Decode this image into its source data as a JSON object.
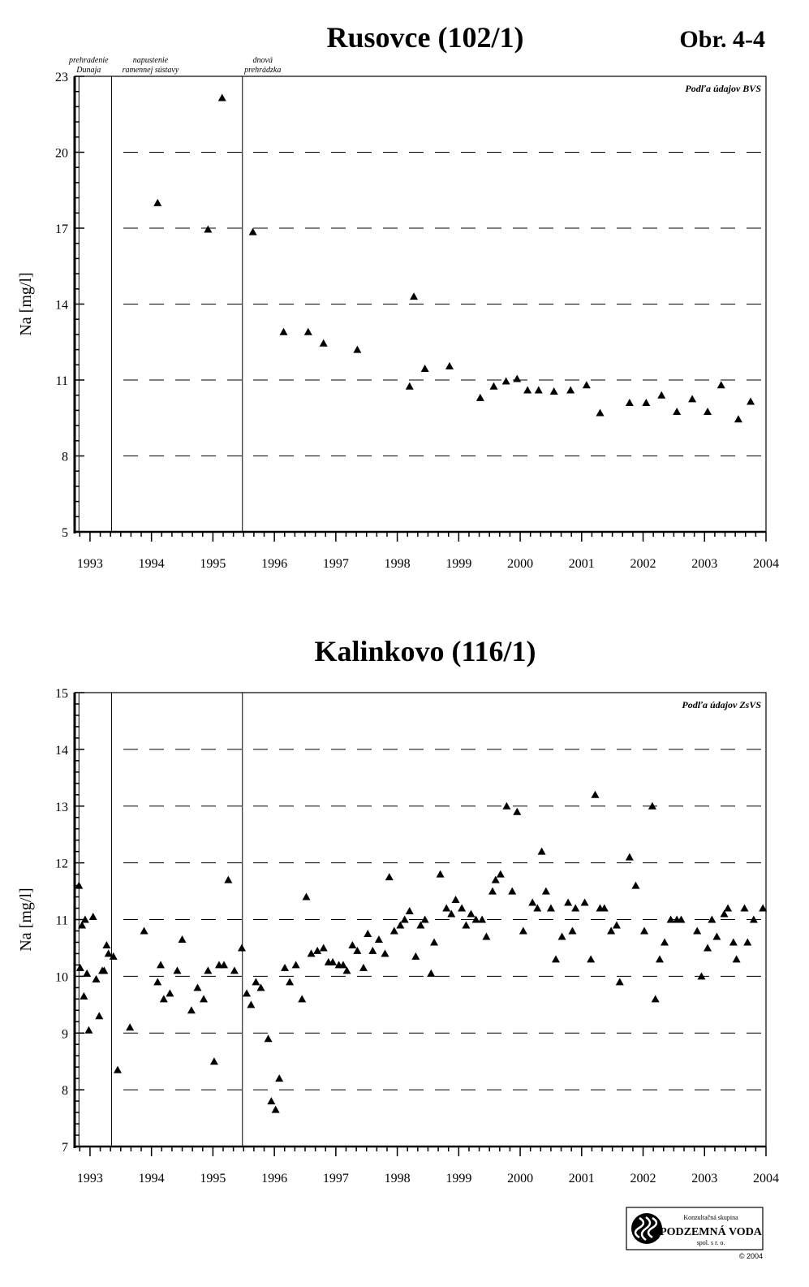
{
  "figure_label": "Obr. 4-4",
  "events": [
    {
      "line1": "prehradenie",
      "line2": "Dunaja",
      "x": 1992.82
    },
    {
      "line1": "napustenie",
      "line2": "ramennej sústavy",
      "x": 1993.35
    },
    {
      "line1": "dnová",
      "line2": "prehrádzka",
      "x": 1995.48
    }
  ],
  "logo": {
    "line1": "Konzultačná skupina",
    "line2": "PODZEMNÁ VODA",
    "line3": "spol. s r. o.",
    "copyright": "© 2004"
  },
  "chart_data": [
    {
      "type": "scatter",
      "title": "Rusovce (102/1)",
      "source_note": "Podľa údajov BVS",
      "ylabel": "Na [mg/l]",
      "xlabel": "",
      "xlim": [
        1992.75,
        2004.0
      ],
      "ylim": [
        5,
        23
      ],
      "x_ticks": [
        1993,
        1994,
        1995,
        1996,
        1997,
        1998,
        1999,
        2000,
        2001,
        2002,
        2003,
        2004
      ],
      "y_ticks": [
        5,
        8,
        11,
        14,
        17,
        20,
        23
      ],
      "grid": "horizontal dashed",
      "marker": "triangle",
      "series": [
        {
          "points": [
            [
              1994.1,
              18.0
            ],
            [
              1994.92,
              16.95
            ],
            [
              1995.15,
              22.15
            ],
            [
              1995.65,
              16.85
            ],
            [
              1996.15,
              12.9
            ],
            [
              1996.55,
              12.9
            ],
            [
              1996.8,
              12.45
            ],
            [
              1997.35,
              12.2
            ],
            [
              1998.2,
              10.75
            ],
            [
              1998.27,
              14.3
            ],
            [
              1998.45,
              11.45
            ],
            [
              1998.85,
              11.55
            ],
            [
              1999.35,
              10.3
            ],
            [
              1999.57,
              10.75
            ],
            [
              1999.77,
              10.95
            ],
            [
              1999.95,
              11.05
            ],
            [
              2000.12,
              10.6
            ],
            [
              2000.3,
              10.6
            ],
            [
              2000.55,
              10.55
            ],
            [
              2000.82,
              10.6
            ],
            [
              2001.08,
              10.8
            ],
            [
              2001.3,
              9.7
            ],
            [
              2001.78,
              10.1
            ],
            [
              2002.05,
              10.1
            ],
            [
              2002.3,
              10.4
            ],
            [
              2002.55,
              9.75
            ],
            [
              2002.8,
              10.25
            ],
            [
              2003.05,
              9.75
            ],
            [
              2003.27,
              10.8
            ],
            [
              2003.55,
              9.45
            ],
            [
              2003.75,
              10.15
            ]
          ]
        }
      ]
    },
    {
      "type": "scatter",
      "title": "Kalinkovo (116/1)",
      "source_note": "Podľa údajov ZsVS",
      "ylabel": "Na [mg/l]",
      "xlabel": "",
      "xlim": [
        1992.75,
        2004.0
      ],
      "ylim": [
        7,
        15
      ],
      "x_ticks": [
        1993,
        1994,
        1995,
        1996,
        1997,
        1998,
        1999,
        2000,
        2001,
        2002,
        2003,
        2004
      ],
      "y_ticks": [
        7,
        8,
        9,
        10,
        11,
        12,
        13,
        14,
        15
      ],
      "grid": "horizontal dashed",
      "marker": "triangle",
      "series": [
        {
          "points": [
            [
              1992.82,
              11.6
            ],
            [
              1992.84,
              10.15
            ],
            [
              1992.87,
              10.9
            ],
            [
              1992.9,
              9.65
            ],
            [
              1992.92,
              11.0
            ],
            [
              1992.95,
              10.05
            ],
            [
              1992.98,
              9.05
            ],
            [
              1993.05,
              11.05
            ],
            [
              1993.1,
              9.95
            ],
            [
              1993.15,
              9.3
            ],
            [
              1993.2,
              10.1
            ],
            [
              1993.23,
              10.1
            ],
            [
              1993.27,
              10.55
            ],
            [
              1993.3,
              10.4
            ],
            [
              1993.38,
              10.35
            ],
            [
              1993.45,
              8.35
            ],
            [
              1993.65,
              9.1
            ],
            [
              1993.88,
              10.8
            ],
            [
              1994.1,
              9.9
            ],
            [
              1994.15,
              10.2
            ],
            [
              1994.2,
              9.6
            ],
            [
              1994.3,
              9.7
            ],
            [
              1994.42,
              10.1
            ],
            [
              1994.5,
              10.65
            ],
            [
              1994.65,
              9.4
            ],
            [
              1994.75,
              9.8
            ],
            [
              1994.85,
              9.6
            ],
            [
              1994.92,
              10.1
            ],
            [
              1995.02,
              8.5
            ],
            [
              1995.1,
              10.2
            ],
            [
              1995.18,
              10.2
            ],
            [
              1995.25,
              11.7
            ],
            [
              1995.35,
              10.1
            ],
            [
              1995.47,
              10.5
            ],
            [
              1995.55,
              9.7
            ],
            [
              1995.62,
              9.5
            ],
            [
              1995.7,
              9.9
            ],
            [
              1995.78,
              9.8
            ],
            [
              1995.9,
              8.9
            ],
            [
              1995.95,
              7.8
            ],
            [
              1996.02,
              7.65
            ],
            [
              1996.08,
              8.2
            ],
            [
              1996.17,
              10.15
            ],
            [
              1996.25,
              9.9
            ],
            [
              1996.35,
              10.2
            ],
            [
              1996.45,
              9.6
            ],
            [
              1996.52,
              11.4
            ],
            [
              1996.6,
              10.4
            ],
            [
              1996.7,
              10.45
            ],
            [
              1996.8,
              10.5
            ],
            [
              1996.88,
              10.25
            ],
            [
              1996.95,
              10.25
            ],
            [
              1997.05,
              10.2
            ],
            [
              1997.12,
              10.2
            ],
            [
              1997.18,
              10.1
            ],
            [
              1997.27,
              10.55
            ],
            [
              1997.35,
              10.45
            ],
            [
              1997.45,
              10.15
            ],
            [
              1997.52,
              10.75
            ],
            [
              1997.6,
              10.45
            ],
            [
              1997.7,
              10.65
            ],
            [
              1997.8,
              10.4
            ],
            [
              1997.87,
              11.75
            ],
            [
              1997.95,
              10.8
            ],
            [
              1998.05,
              10.9
            ],
            [
              1998.12,
              11.0
            ],
            [
              1998.2,
              11.15
            ],
            [
              1998.3,
              10.35
            ],
            [
              1998.38,
              10.9
            ],
            [
              1998.45,
              11.0
            ],
            [
              1998.55,
              10.05
            ],
            [
              1998.6,
              10.6
            ],
            [
              1998.7,
              11.8
            ],
            [
              1998.8,
              11.2
            ],
            [
              1998.88,
              11.1
            ],
            [
              1998.95,
              11.35
            ],
            [
              1999.05,
              11.2
            ],
            [
              1999.12,
              10.9
            ],
            [
              1999.2,
              11.1
            ],
            [
              1999.28,
              11.0
            ],
            [
              1999.38,
              11.0
            ],
            [
              1999.45,
              10.7
            ],
            [
              1999.55,
              11.5
            ],
            [
              1999.6,
              11.7
            ],
            [
              1999.68,
              11.8
            ],
            [
              1999.78,
              13.0
            ],
            [
              1999.87,
              11.5
            ],
            [
              1999.95,
              12.9
            ],
            [
              2000.05,
              10.8
            ],
            [
              2000.2,
              11.3
            ],
            [
              2000.28,
              11.2
            ],
            [
              2000.35,
              12.2
            ],
            [
              2000.42,
              11.5
            ],
            [
              2000.5,
              11.2
            ],
            [
              2000.58,
              10.3
            ],
            [
              2000.68,
              10.7
            ],
            [
              2000.78,
              11.3
            ],
            [
              2000.85,
              10.8
            ],
            [
              2000.9,
              11.2
            ],
            [
              2001.05,
              11.3
            ],
            [
              2001.15,
              10.3
            ],
            [
              2001.22,
              13.2
            ],
            [
              2001.3,
              11.2
            ],
            [
              2001.37,
              11.2
            ],
            [
              2001.48,
              10.8
            ],
            [
              2001.57,
              10.9
            ],
            [
              2001.62,
              9.9
            ],
            [
              2001.78,
              12.1
            ],
            [
              2001.88,
              11.6
            ],
            [
              2002.02,
              10.8
            ],
            [
              2002.15,
              13.0
            ],
            [
              2002.2,
              9.6
            ],
            [
              2002.27,
              10.3
            ],
            [
              2002.35,
              10.6
            ],
            [
              2002.45,
              11.0
            ],
            [
              2002.55,
              11.0
            ],
            [
              2002.62,
              11.0
            ],
            [
              2002.88,
              10.8
            ],
            [
              2002.95,
              10.0
            ],
            [
              2003.05,
              10.5
            ],
            [
              2003.12,
              11.0
            ],
            [
              2003.2,
              10.7
            ],
            [
              2003.32,
              11.1
            ],
            [
              2003.38,
              11.2
            ],
            [
              2003.47,
              10.6
            ],
            [
              2003.52,
              10.3
            ],
            [
              2003.65,
              11.2
            ],
            [
              2003.7,
              10.6
            ],
            [
              2003.8,
              11.0
            ],
            [
              2003.95,
              11.2
            ]
          ]
        }
      ]
    }
  ]
}
